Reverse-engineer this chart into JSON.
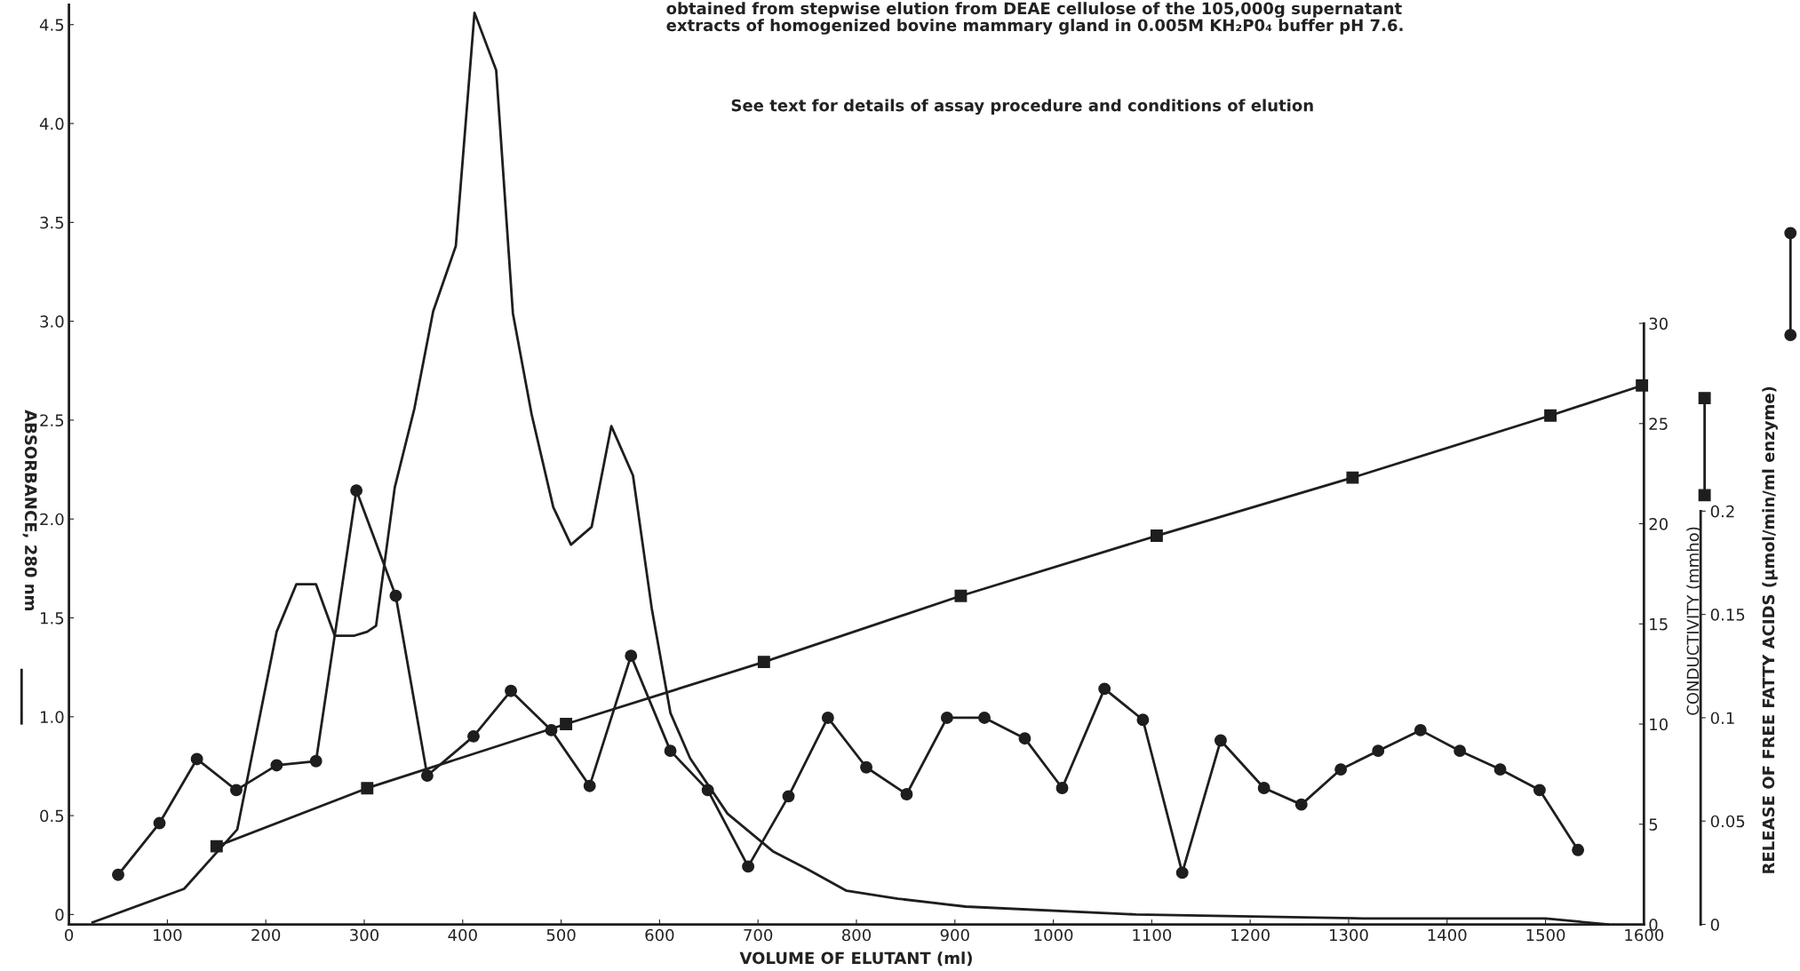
{
  "chart_data": {
    "type": "line",
    "title": "obtained from stepwise elution from DEAE cellulose of the 105,000g supernatant\nextracts of homogenized bovine mammary gland in 0.005M KH₂P0₄ buffer pH 7.6.",
    "annotations": [
      "See text for details of assay procedure and conditions of elution"
    ],
    "xlabel": "VOLUME OF ELUTANT (ml)",
    "ylabel": "ABSORBANCE, 280 nm",
    "y2label": "CONDUCTIVITY (mmho)",
    "y3label": "RELEASE OF FREE FATTY ACIDS (μmol/min/ml enzyme)",
    "xlim": [
      0,
      1600
    ],
    "xticks": [
      0,
      100,
      200,
      300,
      400,
      500,
      600,
      700,
      800,
      900,
      1000,
      1100,
      1200,
      1300,
      1400,
      1500,
      1600
    ],
    "ylim": [
      -0.05,
      4.6
    ],
    "yticks": [
      0,
      0.5,
      {
        "value": 1,
        "label": "1.0"
      },
      1.5,
      {
        "value": 2,
        "label": "2.0"
      },
      2.5,
      {
        "value": 3,
        "label": "3.0"
      },
      3.5,
      {
        "value": 4,
        "label": "4.0"
      },
      4.5
    ],
    "y2lim": [
      0,
      45.9
    ],
    "y2ticks": [
      0,
      5,
      10,
      15,
      20,
      25,
      30
    ],
    "y3lim": [
      0,
      0.445
    ],
    "y3ticks": [
      0,
      0.05,
      0.1,
      0.15,
      0.2
    ],
    "grid": false,
    "legend": false,
    "series": [
      {
        "axis": "y",
        "color": "#1e1e1e",
        "marker": "none",
        "line_style": "solid",
        "x": [
          24,
          117,
          171,
          211,
          231,
          251,
          270,
          290,
          303,
          312,
          331,
          351,
          370,
          393,
          412,
          434,
          451,
          470,
          492,
          510,
          531,
          551,
          573,
          592,
          611,
          631,
          669,
          715,
          750,
          790,
          842,
          911,
          1084,
          1315,
          1500,
          1563
        ],
        "values": [
          -0.04,
          0.13,
          0.43,
          1.43,
          1.67,
          1.67,
          1.41,
          1.41,
          1.43,
          1.46,
          2.16,
          2.56,
          3.05,
          3.38,
          4.56,
          4.27,
          3.04,
          2.53,
          2.06,
          1.87,
          1.96,
          2.47,
          2.22,
          1.55,
          1.02,
          0.79,
          0.51,
          0.32,
          0.23,
          0.12,
          0.08,
          0.04,
          0.0,
          -0.02,
          -0.02,
          -0.05
        ]
      },
      {
        "axis": "y2",
        "color": "#1e1e1e",
        "marker": "square",
        "line_style": "solid",
        "x": [
          150,
          303,
          505,
          706,
          906,
          1105,
          1304,
          1505,
          1598
        ],
        "values": [
          3.9,
          6.8,
          10.0,
          13.1,
          16.4,
          19.4,
          22.3,
          25.4,
          26.9
        ]
      },
      {
        "axis": "y3",
        "color": "#1e1e1e",
        "marker": "circle",
        "line_style": "solid",
        "x": [
          50,
          92,
          130,
          170,
          211,
          251,
          292,
          332,
          364,
          411,
          449,
          490,
          529,
          571,
          611,
          649,
          690,
          731,
          771,
          810,
          851,
          892,
          930,
          971,
          1009,
          1052,
          1091,
          1131,
          1170,
          1214,
          1252,
          1292,
          1330,
          1373,
          1413,
          1454,
          1494,
          1533
        ],
        "values": [
          0.024,
          0.049,
          0.08,
          0.065,
          0.077,
          0.079,
          0.21,
          0.159,
          0.072,
          0.091,
          0.113,
          0.094,
          0.067,
          0.13,
          0.084,
          0.065,
          0.028,
          0.062,
          0.1,
          0.076,
          0.063,
          0.1,
          0.1,
          0.09,
          0.066,
          0.114,
          0.099,
          0.025,
          0.089,
          0.066,
          0.058,
          0.075,
          0.084,
          0.094,
          0.084,
          0.075,
          0.065,
          0.036
        ]
      }
    ]
  }
}
